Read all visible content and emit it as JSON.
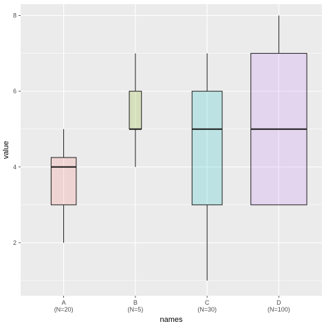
{
  "chart_data": {
    "type": "boxplot",
    "xlabel": "names",
    "ylabel": "value",
    "ylim": [
      0.6,
      8.3
    ],
    "y_ticks": [
      2,
      4,
      6,
      8
    ],
    "categories": [
      "A",
      "B",
      "C",
      "D"
    ],
    "category_sublabels": [
      "(N=20)",
      "(N=5)",
      "(N=30)",
      "(N=100)"
    ],
    "box_widths": [
      0.35,
      0.17,
      0.42,
      0.78
    ],
    "boxes": [
      {
        "name": "A",
        "min": 2,
        "q1": 3,
        "median": 4,
        "q3": 4.25,
        "max": 5,
        "fill": "#F8766D"
      },
      {
        "name": "B",
        "min": 4,
        "q1": 5,
        "median": 5,
        "q3": 6,
        "max": 7,
        "fill": "#7CAE00"
      },
      {
        "name": "C",
        "min": 1,
        "q1": 3,
        "median": 5,
        "q3": 6,
        "max": 7,
        "fill": "#00BFC4"
      },
      {
        "name": "D",
        "min": 3,
        "q1": 3,
        "median": 5,
        "q3": 7,
        "max": 8,
        "fill": "#C77CFF"
      }
    ],
    "fill_alpha": 0.2,
    "grid": true,
    "legend": "none",
    "panel_background": "#EBEBEB",
    "grid_color": "#FFFFFF"
  }
}
